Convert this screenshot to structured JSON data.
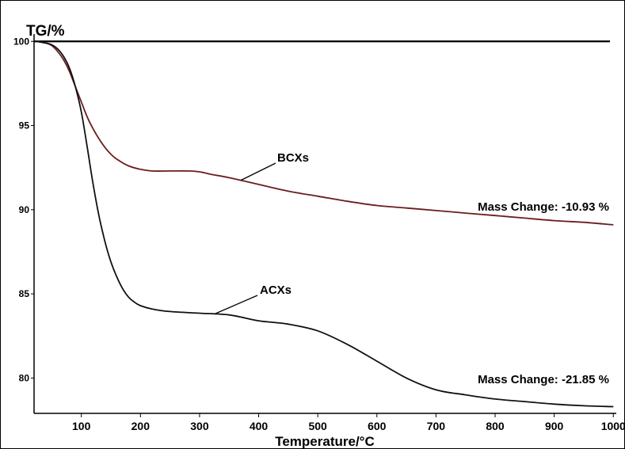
{
  "chart_data": {
    "type": "line",
    "ylabel": "TG/%",
    "xlabel": "Temperature/°C",
    "xlim": [
      20,
      1005
    ],
    "ylim": [
      77.9,
      100.2
    ],
    "x_ticks": [
      100,
      200,
      300,
      400,
      500,
      600,
      700,
      800,
      900,
      1000
    ],
    "y_ticks": [
      80,
      85,
      90,
      95,
      100
    ],
    "grid": false,
    "reference_line": 100,
    "colors": {
      "BCXs": "#6b1d1d",
      "ACXs": "#111111",
      "reference": "#000000"
    },
    "series": [
      {
        "name": "BCXs",
        "x": [
          25,
          40,
          50,
          60,
          70,
          80,
          90,
          100,
          110,
          120,
          130,
          140,
          150,
          160,
          180,
          200,
          220,
          250,
          280,
          300,
          320,
          350,
          400,
          450,
          500,
          550,
          600,
          650,
          700,
          750,
          800,
          850,
          900,
          950,
          1000
        ],
        "y": [
          100,
          99.9,
          99.75,
          99.4,
          98.9,
          98.2,
          97.3,
          96.4,
          95.5,
          94.8,
          94.2,
          93.7,
          93.3,
          93.0,
          92.6,
          92.4,
          92.3,
          92.3,
          92.3,
          92.25,
          92.1,
          91.9,
          91.5,
          91.1,
          90.8,
          90.5,
          90.25,
          90.1,
          89.95,
          89.8,
          89.65,
          89.5,
          89.35,
          89.25,
          89.1
        ]
      },
      {
        "name": "ACXs",
        "x": [
          25,
          40,
          50,
          60,
          70,
          80,
          90,
          100,
          110,
          120,
          130,
          140,
          150,
          160,
          170,
          180,
          190,
          200,
          220,
          250,
          300,
          350,
          400,
          450,
          500,
          550,
          600,
          650,
          700,
          750,
          800,
          850,
          900,
          950,
          1000
        ],
        "y": [
          100,
          99.9,
          99.8,
          99.55,
          99.1,
          98.4,
          97.3,
          95.8,
          93.7,
          91.5,
          89.6,
          88.1,
          86.9,
          86.0,
          85.3,
          84.8,
          84.5,
          84.3,
          84.1,
          83.95,
          83.85,
          83.75,
          83.4,
          83.2,
          82.8,
          82.0,
          81.0,
          80.0,
          79.3,
          79.0,
          78.75,
          78.6,
          78.45,
          78.35,
          78.3
        ]
      }
    ],
    "annotations": [
      {
        "text": "BCXs",
        "series": "BCXs"
      },
      {
        "text": "ACXs",
        "series": "ACXs"
      },
      {
        "text": "Mass Change: -10.93 %",
        "series": "BCXs"
      },
      {
        "text": "Mass Change: -21.85 %",
        "series": "ACXs"
      }
    ]
  }
}
